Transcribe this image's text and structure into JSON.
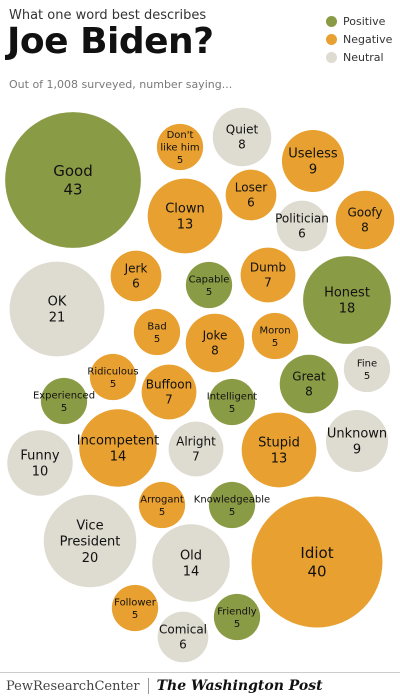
{
  "header": {
    "question": "What one word best describes",
    "title": "Joe Biden?",
    "note": "Out of 1,008 surveyed, number saying..."
  },
  "legend": [
    {
      "label": "Positive",
      "color": "#8a9b45"
    },
    {
      "label": "Negative",
      "color": "#e8a030"
    },
    {
      "label": "Neutral",
      "color": "#dedbd0"
    }
  ],
  "colors": {
    "Positive": "#8a9b45",
    "Negative": "#e8a030",
    "Neutral": "#dedbd0"
  },
  "chart_data": {
    "type": "bubble",
    "title": "Joe Biden?",
    "subtitle": "What one word best describes",
    "note": "Out of 1,008 surveyed, number saying...",
    "series": [
      {
        "name": "Positive",
        "items": [
          {
            "word": "Good",
            "count": 43
          },
          {
            "word": "Honest",
            "count": 18
          },
          {
            "word": "Great",
            "count": 8
          },
          {
            "word": "Capable",
            "count": 5
          },
          {
            "word": "Experienced",
            "count": 5
          },
          {
            "word": "Intelligent",
            "count": 5
          },
          {
            "word": "Knowledgeable",
            "count": 5
          },
          {
            "word": "Friendly",
            "count": 5
          }
        ]
      },
      {
        "name": "Negative",
        "items": [
          {
            "word": "Idiot",
            "count": 40
          },
          {
            "word": "Incompetent",
            "count": 14
          },
          {
            "word": "Clown",
            "count": 13
          },
          {
            "word": "Stupid",
            "count": 13
          },
          {
            "word": "Useless",
            "count": 9
          },
          {
            "word": "Goofy",
            "count": 8
          },
          {
            "word": "Joke",
            "count": 8
          },
          {
            "word": "Buffoon",
            "count": 7
          },
          {
            "word": "Dumb",
            "count": 7
          },
          {
            "word": "Loser",
            "count": 6
          },
          {
            "word": "Jerk",
            "count": 6
          },
          {
            "word": "Don't like him",
            "count": 5
          },
          {
            "word": "Bad",
            "count": 5
          },
          {
            "word": "Moron",
            "count": 5
          },
          {
            "word": "Ridiculous",
            "count": 5
          },
          {
            "word": "Arrogant",
            "count": 5
          },
          {
            "word": "Follower",
            "count": 5
          }
        ]
      },
      {
        "name": "Neutral",
        "items": [
          {
            "word": "Vice President",
            "count": 20
          },
          {
            "word": "OK",
            "count": 21
          },
          {
            "word": "Old",
            "count": 14
          },
          {
            "word": "Funny",
            "count": 10
          },
          {
            "word": "Unknown",
            "count": 9
          },
          {
            "word": "Quiet",
            "count": 8
          },
          {
            "word": "Alright",
            "count": 7
          },
          {
            "word": "Politician",
            "count": 6
          },
          {
            "word": "Comical",
            "count": 6
          },
          {
            "word": "Fine",
            "count": 5
          }
        ]
      }
    ]
  },
  "footer": {
    "source": "PewResearchCenter",
    "partner": "The Washington Post"
  }
}
